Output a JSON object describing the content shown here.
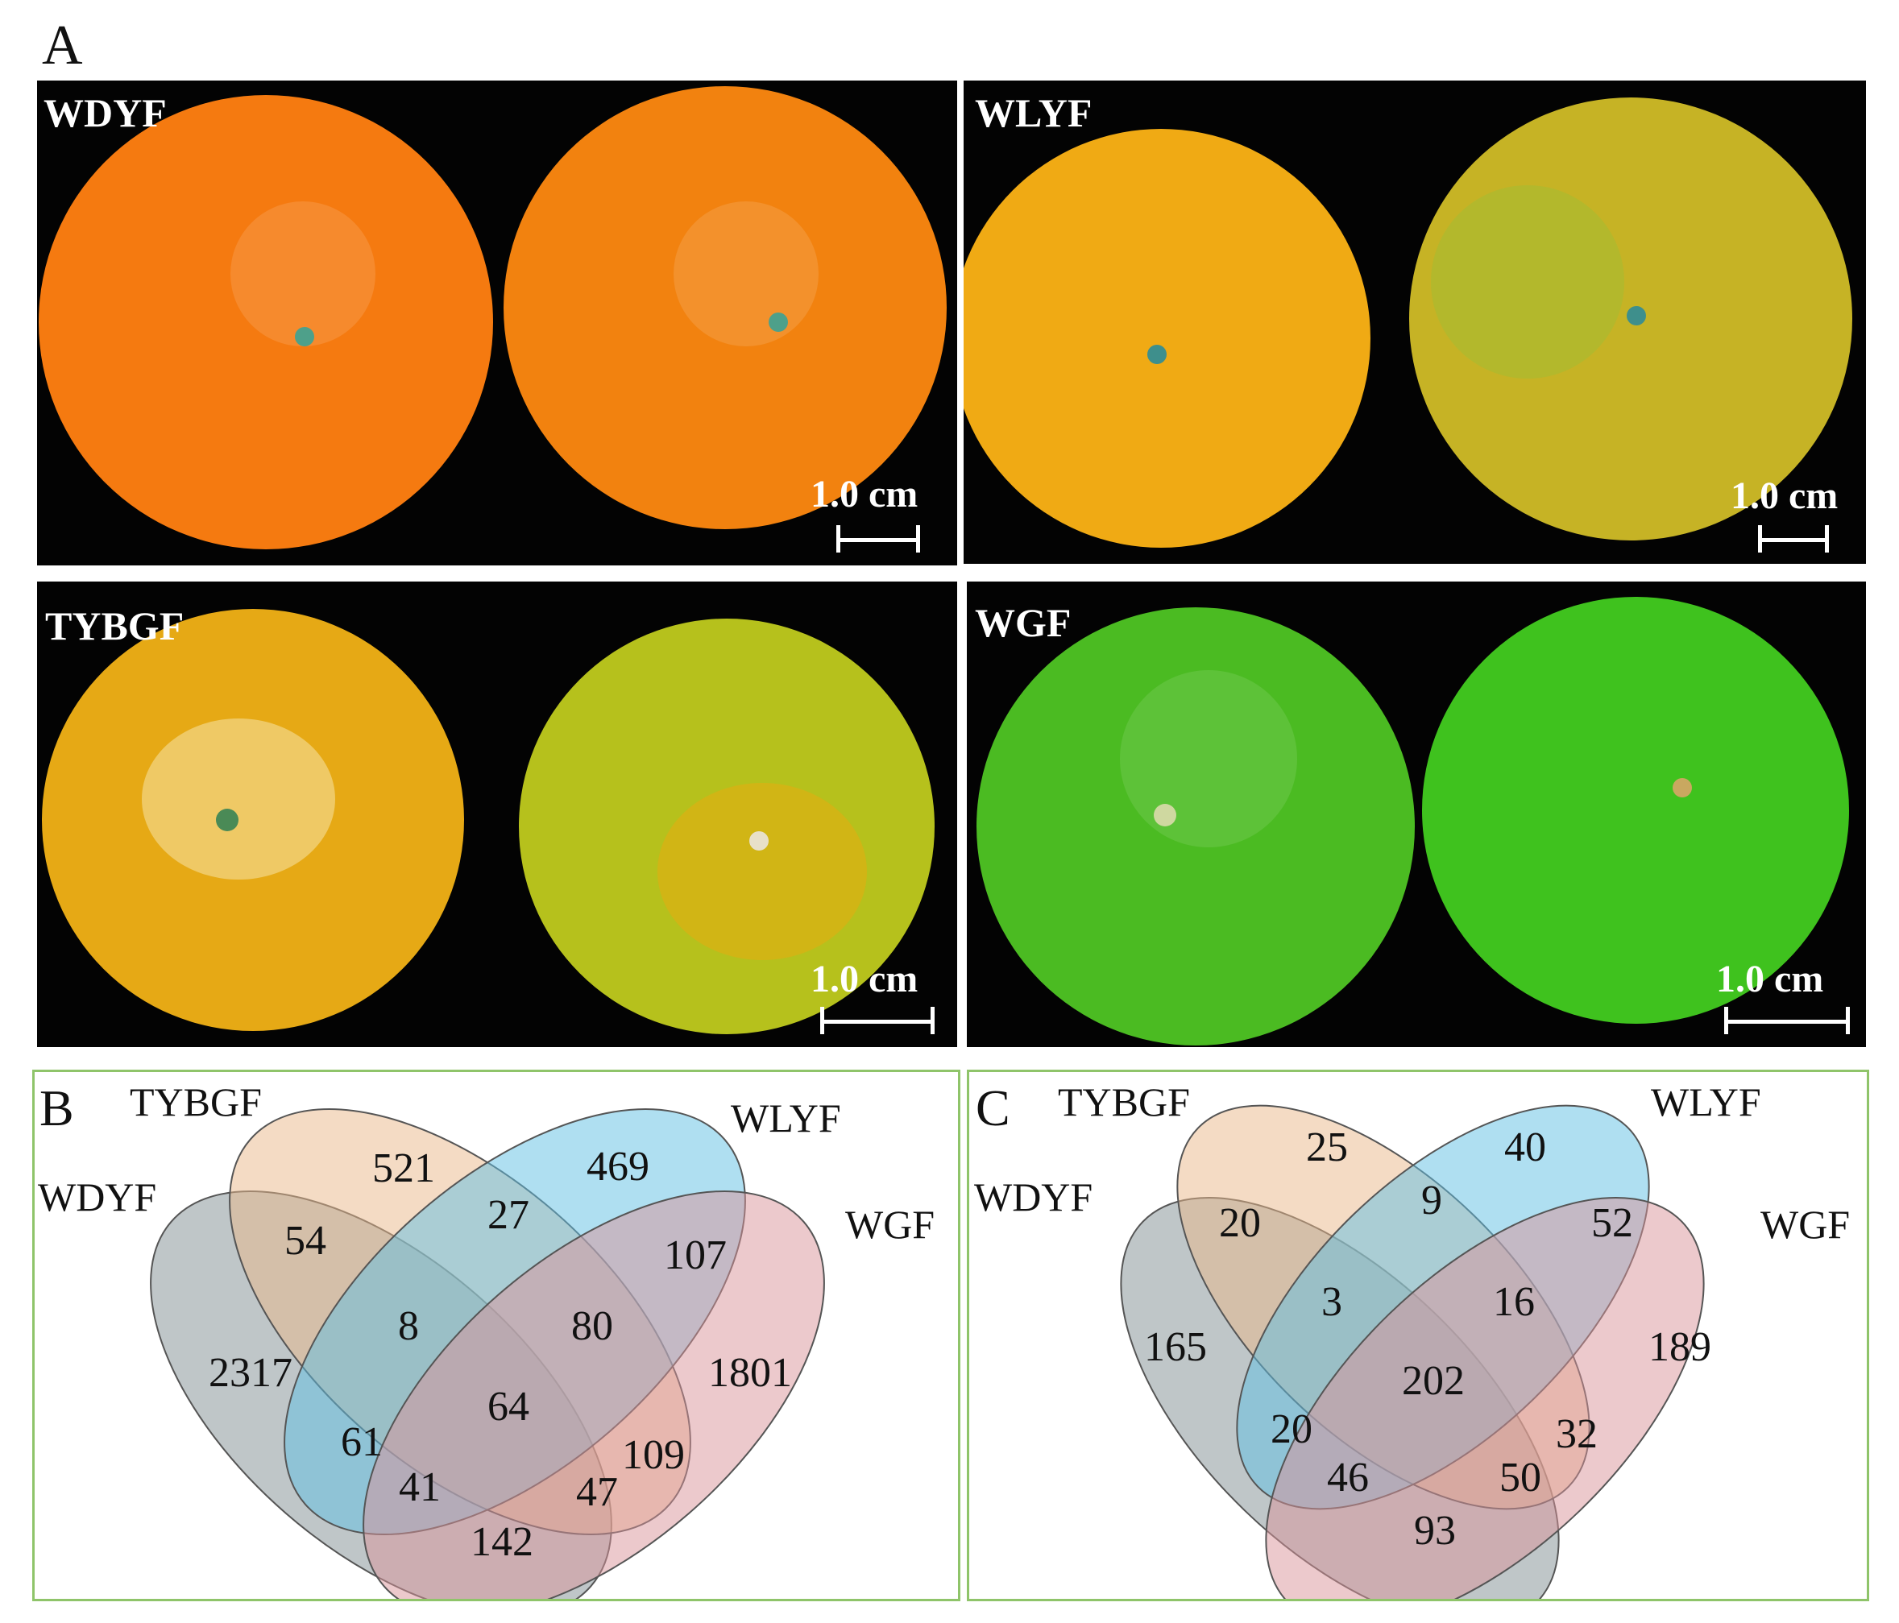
{
  "figure": {
    "panel_a_letter": "A",
    "panel_b_letter": "B",
    "panel_c_letter": "C"
  },
  "photos": [
    {
      "label": "WDYF",
      "scale": "1.0 cm",
      "color_left": "#f57a10",
      "color_right": "#f2820f"
    },
    {
      "label": "WLYF",
      "scale": "1.0 cm",
      "color_left": "#f0aa14",
      "color_right": "#c6b325"
    },
    {
      "label": "TYBGF",
      "scale": "1.0 cm",
      "color_left": "#e6a915",
      "color_right": "#b6c11c"
    },
    {
      "label": "WGF",
      "scale": "1.0 cm",
      "color_left": "#4bbb22",
      "color_right": "#3fc21e"
    }
  ],
  "venn_colors": {
    "WDYF": "#7f8e92",
    "TYBGF": "#eab88a",
    "WLYF": "#5fc0e4",
    "WGF": "#d9949a"
  },
  "venn_b": {
    "sets": [
      "WDYF",
      "TYBGF",
      "WLYF",
      "WGF"
    ],
    "regions": {
      "WDYF_only": "2317",
      "TYBGF_only": "521",
      "WLYF_only": "469",
      "WGF_only": "1801",
      "WDYF_TYBGF": "54",
      "TYBGF_WLYF": "27",
      "WLYF_WGF": "107",
      "WDYF_WLYF": "61",
      "TYBGF_WGF": "109",
      "WDYF_WGF": "142",
      "WDYF_TYBGF_WLYF": "8",
      "TYBGF_WLYF_WGF": "80",
      "WDYF_WLYF_WGF": "41",
      "WDYF_TYBGF_WGF": "47",
      "all": "64"
    }
  },
  "venn_c": {
    "sets": [
      "WDYF",
      "TYBGF",
      "WLYF",
      "WGF"
    ],
    "regions": {
      "WDYF_only": "165",
      "TYBGF_only": "25",
      "WLYF_only": "40",
      "WGF_only": "189",
      "WDYF_TYBGF": "20",
      "TYBGF_WLYF": "9",
      "WLYF_WGF": "52",
      "WDYF_WLYF": "20",
      "TYBGF_WGF": "32",
      "WDYF_WGF": "93",
      "WDYF_TYBGF_WLYF": "3",
      "TYBGF_WLYF_WGF": "16",
      "WDYF_WLYF_WGF": "46",
      "WDYF_TYBGF_WGF": "50",
      "all": "202"
    }
  }
}
